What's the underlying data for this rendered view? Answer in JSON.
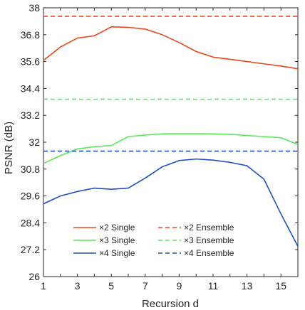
{
  "chart_data": {
    "type": "line",
    "title": "",
    "xlabel": "Recursion d",
    "ylabel": "PSNR (dB)",
    "xlim": [
      1,
      16
    ],
    "ylim": [
      26,
      38
    ],
    "xticks": [
      1,
      3,
      5,
      7,
      9,
      11,
      13,
      15
    ],
    "xtick_labels": [
      "1",
      "3",
      "5",
      "7",
      "9",
      "11",
      "13",
      "15"
    ],
    "yticks": [
      26,
      27.2,
      28.4,
      29.6,
      30.8,
      32,
      33.2,
      34.4,
      35.6,
      36.8,
      38
    ],
    "ytick_labels": [
      "26",
      "27.2",
      "28.4",
      "29.6",
      "30.8",
      "32",
      "33.2",
      "34.4",
      "35.6",
      "36.8",
      "38"
    ],
    "grid": false,
    "legend_position": "bottom-center",
    "x": [
      1,
      2,
      3,
      4,
      5,
      6,
      7,
      8,
      9,
      10,
      11,
      12,
      13,
      14,
      15,
      16
    ],
    "series": [
      {
        "name": "×2 Single",
        "style": "solid",
        "color": "#e8491d",
        "values": [
          35.65,
          36.25,
          36.65,
          36.75,
          37.15,
          37.13,
          37.05,
          36.8,
          36.45,
          36.05,
          35.8,
          35.7,
          35.6,
          35.5,
          35.4,
          35.28
        ]
      },
      {
        "name": "×3 Single",
        "style": "solid",
        "color": "#58e858",
        "values": [
          31.05,
          31.4,
          31.7,
          31.8,
          31.85,
          32.25,
          32.32,
          32.37,
          32.38,
          32.38,
          32.37,
          32.35,
          32.3,
          32.25,
          32.2,
          31.9
        ]
      },
      {
        "name": "×4 Single",
        "style": "solid",
        "color": "#1f4fbf",
        "values": [
          29.25,
          29.6,
          29.8,
          29.95,
          29.9,
          29.95,
          30.4,
          30.9,
          31.18,
          31.25,
          31.2,
          31.1,
          30.95,
          30.35,
          28.8,
          27.35
        ]
      },
      {
        "name": "×2 Ensemble",
        "style": "dashed",
        "color": "#e8491d",
        "values": [
          37.62,
          37.62,
          37.62,
          37.62,
          37.62,
          37.62,
          37.62,
          37.62,
          37.62,
          37.62,
          37.62,
          37.62,
          37.62,
          37.62,
          37.62,
          37.62
        ]
      },
      {
        "name": "×3 Ensemble",
        "style": "dashed",
        "color": "#58e858",
        "values": [
          33.92,
          33.92,
          33.92,
          33.92,
          33.92,
          33.92,
          33.92,
          33.92,
          33.92,
          33.92,
          33.92,
          33.92,
          33.92,
          33.92,
          33.92,
          33.92
        ]
      },
      {
        "name": "×4 Ensemble",
        "style": "dashed",
        "color": "#1f4fbf",
        "values": [
          31.6,
          31.6,
          31.6,
          31.6,
          31.6,
          31.6,
          31.6,
          31.6,
          31.6,
          31.6,
          31.6,
          31.6,
          31.6,
          31.6,
          31.6,
          31.6
        ]
      }
    ]
  }
}
